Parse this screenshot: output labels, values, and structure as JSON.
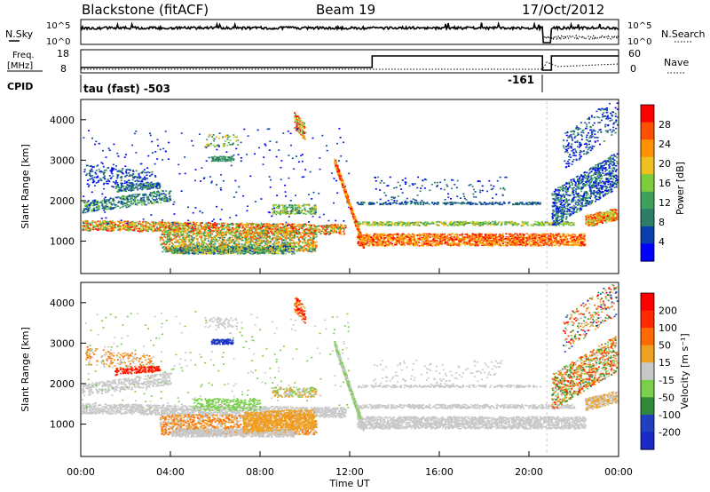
{
  "header": {
    "station": "Blackstone (fitACF)",
    "beam": "Beam 19",
    "date": "17/Oct/2012"
  },
  "top_panels": {
    "nsky_label": "N.Sky",
    "nsky_ticks": [
      "10^5",
      "10^0"
    ],
    "nsearch_label": "N.Search",
    "nsearch_ticks": [
      "10^5",
      "10^0"
    ],
    "freq_label_1": "Freq.",
    "freq_label_2": "[MHz]",
    "freq_ticks": [
      "18",
      "8"
    ],
    "nave_label": "Nave",
    "nave_ticks": [
      "60",
      "0"
    ],
    "cpid_label": "CPID",
    "cpid_text": "tau (fast) -503",
    "cpid_change": "-161"
  },
  "chart_data": [
    {
      "type": "heatmap",
      "name": "power-panel",
      "ylabel": "Slant Range [km]",
      "yticks": [
        "4000",
        "3000",
        "2000",
        "1000"
      ],
      "ylim": [
        200,
        4500
      ],
      "xlim": [
        0,
        24
      ],
      "colorbar_label": "Power [dB]",
      "colorbar_ticks": [
        "28",
        "24",
        "20",
        "16",
        "12",
        "8",
        "4"
      ],
      "colors": [
        "#0000ff",
        "#0a3fae",
        "#2d7e67",
        "#3fa05c",
        "#7ccc3d",
        "#f0c020",
        "#ff9000",
        "#ff5000",
        "#ff0000"
      ]
    },
    {
      "type": "heatmap",
      "name": "velocity-panel",
      "ylabel": "Slant Range [km]",
      "yticks": [
        "4000",
        "3000",
        "2000",
        "1000"
      ],
      "ylim": [
        200,
        4500
      ],
      "xlim": [
        0,
        24
      ],
      "colorbar_label": "Velocity [m s⁻¹]",
      "colorbar_ticks": [
        "200",
        "100",
        "50",
        "15",
        "-15",
        "-50",
        "-100",
        "-200"
      ],
      "colors": [
        "#1a2ac8",
        "#2040c0",
        "#2f8a3a",
        "#7ad04a",
        "#c8c8c8",
        "#f0a020",
        "#ff6a00",
        "#ff2a00",
        "#ff0000"
      ]
    }
  ],
  "xaxis": {
    "ticks": [
      "00:00",
      "04:00",
      "08:00",
      "12:00",
      "16:00",
      "20:00",
      "00:00"
    ],
    "label": "Time UT"
  }
}
